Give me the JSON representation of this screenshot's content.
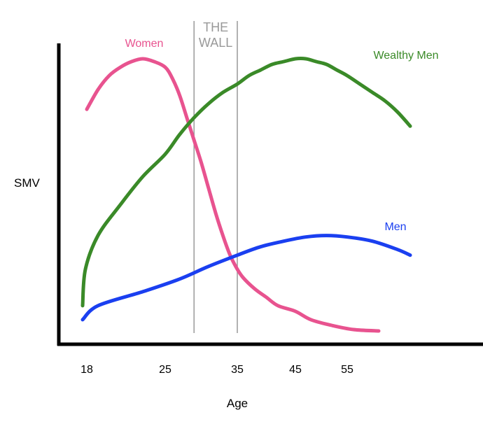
{
  "chart_data": {
    "type": "line",
    "xlabel": "Age",
    "ylabel": "SMV",
    "x_ticks": [
      "18",
      "25",
      "35",
      "45",
      "55"
    ],
    "region": {
      "label_line1": "THE",
      "label_line2": "WALL",
      "x_start": 29,
      "x_end": 35,
      "color": "#999999"
    },
    "series": [
      {
        "name": "Women",
        "color": "#e8538f",
        "x": [
          18,
          19,
          20,
          21,
          22,
          23,
          24,
          25,
          26,
          27,
          28,
          29,
          30,
          31,
          32,
          33,
          34,
          35,
          36,
          38,
          40,
          42,
          45,
          48,
          52,
          56,
          60
        ],
        "y": [
          0.8,
          0.87,
          0.92,
          0.95,
          0.97,
          0.98,
          0.97,
          0.95,
          0.91,
          0.85,
          0.77,
          0.69,
          0.61,
          0.52,
          0.43,
          0.35,
          0.28,
          0.23,
          0.2,
          0.16,
          0.13,
          0.1,
          0.08,
          0.05,
          0.03,
          0.015,
          0.01
        ]
      },
      {
        "name": "Wealthy Men",
        "color": "#3a8a28",
        "x": [
          15,
          17,
          19,
          21,
          23,
          25,
          27,
          29,
          31,
          33,
          35,
          37,
          39,
          41,
          43,
          45,
          47,
          49,
          51,
          53,
          55,
          57,
          59,
          61,
          63,
          65
        ],
        "y": [
          0.1,
          0.23,
          0.35,
          0.46,
          0.56,
          0.64,
          0.71,
          0.77,
          0.82,
          0.86,
          0.89,
          0.92,
          0.94,
          0.96,
          0.97,
          0.98,
          0.98,
          0.97,
          0.96,
          0.94,
          0.92,
          0.89,
          0.86,
          0.83,
          0.79,
          0.74
        ]
      },
      {
        "name": "Men",
        "color": "#1a3ff0",
        "x": [
          15,
          19,
          23,
          27,
          31,
          35,
          39,
          43,
          47,
          51,
          55,
          59,
          63,
          65
        ],
        "y": [
          0.05,
          0.1,
          0.15,
          0.195,
          0.24,
          0.28,
          0.31,
          0.33,
          0.345,
          0.35,
          0.345,
          0.33,
          0.3,
          0.28
        ]
      }
    ]
  }
}
